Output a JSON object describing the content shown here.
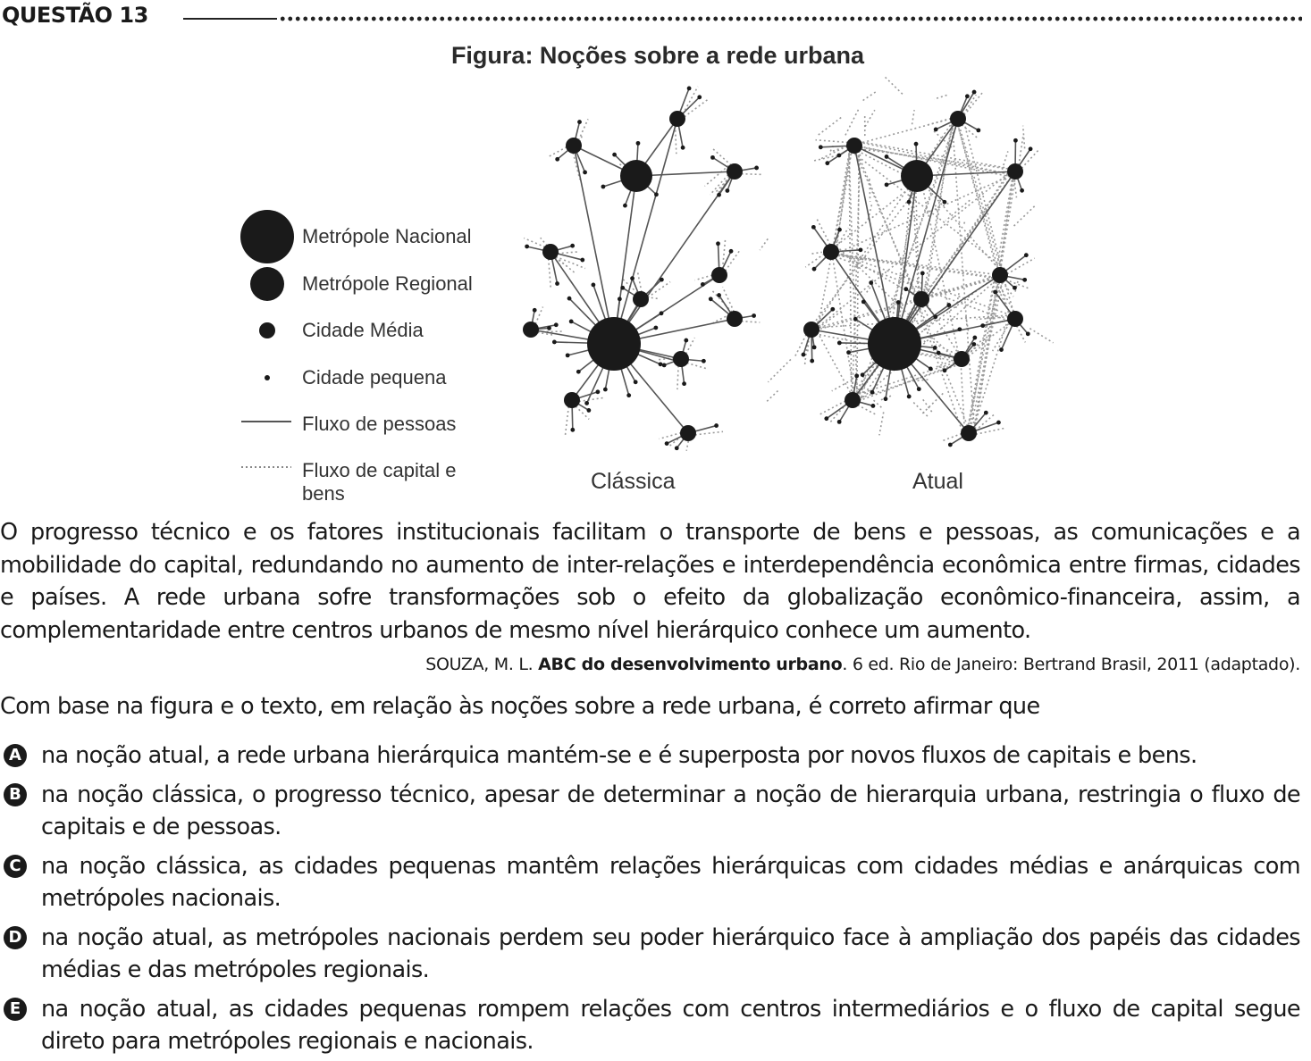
{
  "header": {
    "title": "QUESTÃO 13"
  },
  "figure": {
    "title": "Figura: Noções sobre a rede urbana",
    "legend": [
      {
        "label": "Metrópole Nacional",
        "symbol": "large-circle"
      },
      {
        "label": "Metrópole Regional",
        "symbol": "medium-circle"
      },
      {
        "label": "Cidade Média",
        "symbol": "small-circle"
      },
      {
        "label": "Cidade pequena",
        "symbol": "dot"
      },
      {
        "label": "Fluxo de pessoas",
        "symbol": "solid-line"
      },
      {
        "label": "Fluxo de capital e bens",
        "symbol": "dotted-line"
      }
    ],
    "networks": [
      {
        "label": "Clássica"
      },
      {
        "label": "Atual"
      }
    ],
    "colors": {
      "ink": "#1a1a1a",
      "flow_people": "#555555",
      "flow_capital": "#9a9a9a"
    }
  },
  "text": {
    "paragraph": "O progresso técnico e os fatores institucionais facilitam o transporte de bens e pessoas, as comunicações e a mobilidade do capital, redundando no aumento de inter-relações e interdependência econômica entre firmas, cidades e países. A rede urbana sofre transformações sob o efeito da globalização econômico-financeira, assim, a complementaridade entre centros urbanos de mesmo nível hierárquico conhece um aumento.",
    "source_prefix": "SOUZA, M. L. ",
    "source_title": "ABC do desenvolvimento urbano",
    "source_suffix": ". 6 ed. Rio de Janeiro: Bertrand Brasil, 2011 (adaptado).",
    "prompt": "Com base na figura e o texto, em relação às noções sobre a rede urbana, é correto afirmar que"
  },
  "options": [
    {
      "letter": "A",
      "text": "na noção atual, a rede urbana hierárquica mantém-se e é superposta por novos fluxos de capitais e bens."
    },
    {
      "letter": "B",
      "text": "na noção clássica, o progresso técnico, apesar de determinar a noção de hierarquia urbana, restringia o fluxo de capitais e de pessoas."
    },
    {
      "letter": "C",
      "text": "na noção clássica, as cidades pequenas mantêm relações hierárquicas com cidades médias e anárquicas com metrópoles nacionais."
    },
    {
      "letter": "D",
      "text": "na noção atual, as metrópoles nacionais perdem seu poder hierárquico face à ampliação dos papéis das cidades médias e das metrópoles regionais."
    },
    {
      "letter": "E",
      "text": "na noção atual, as cidades pequenas rompem relações com centros intermediários e o fluxo de capital segue direto para metrópoles regionais e nacionais."
    }
  ]
}
